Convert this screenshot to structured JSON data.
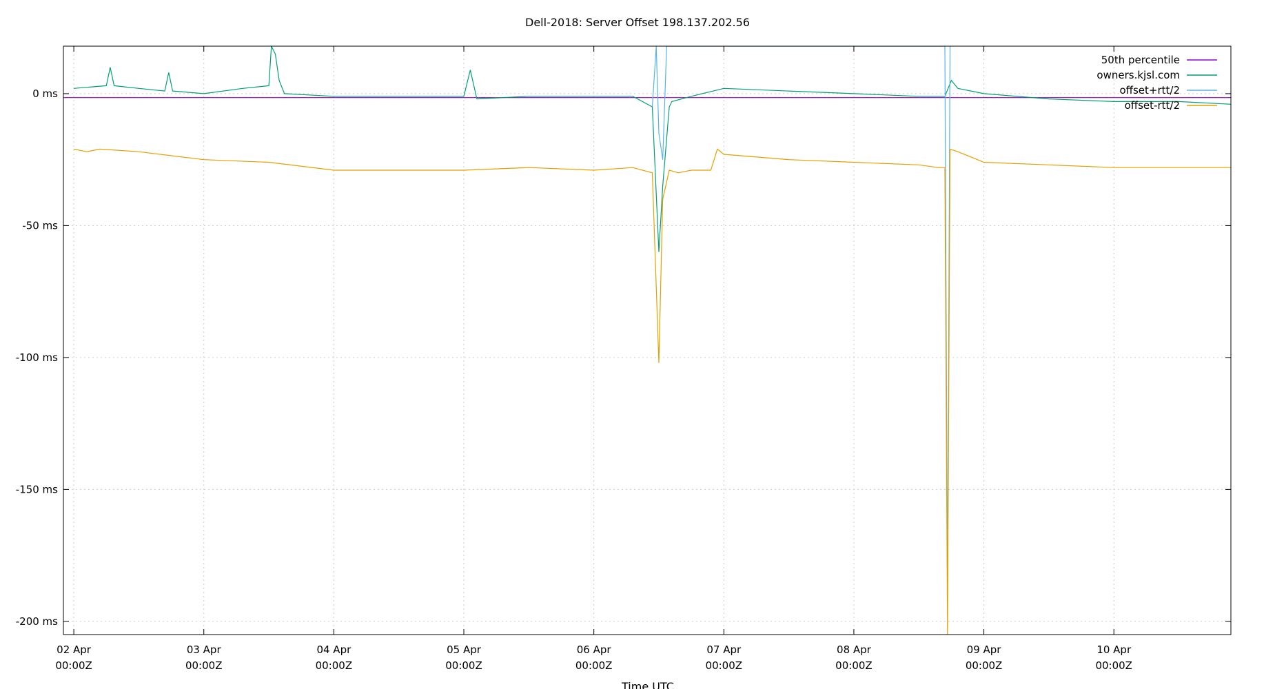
{
  "chart_data": {
    "type": "line",
    "title": "Dell-2018: Server Offset 198.137.202.56",
    "xlabel": "Time UTC",
    "ylabel": "",
    "x_unit": "days",
    "xlim": [
      -0.08,
      8.9
    ],
    "ylim": [
      -205,
      18
    ],
    "grid": true,
    "legend_position": "top-right",
    "x_ticks": [
      {
        "value": 0,
        "line1": "02 Apr",
        "line2": "00:00Z"
      },
      {
        "value": 1,
        "line1": "03 Apr",
        "line2": "00:00Z"
      },
      {
        "value": 2,
        "line1": "04 Apr",
        "line2": "00:00Z"
      },
      {
        "value": 3,
        "line1": "05 Apr",
        "line2": "00:00Z"
      },
      {
        "value": 4,
        "line1": "06 Apr",
        "line2": "00:00Z"
      },
      {
        "value": 5,
        "line1": "07 Apr",
        "line2": "00:00Z"
      },
      {
        "value": 6,
        "line1": "08 Apr",
        "line2": "00:00Z"
      },
      {
        "value": 7,
        "line1": "09 Apr",
        "line2": "00:00Z"
      },
      {
        "value": 8,
        "line1": "10 Apr",
        "line2": "00:00Z"
      }
    ],
    "y_ticks": [
      {
        "value": 0,
        "label": "0 ms"
      },
      {
        "value": -50,
        "label": "-50 ms"
      },
      {
        "value": -100,
        "label": "-100 ms"
      },
      {
        "value": -150,
        "label": "-150 ms"
      },
      {
        "value": -200,
        "label": "-200 ms"
      }
    ],
    "series": [
      {
        "name": "50th percentile",
        "color": "#9400d3",
        "x": [
          -0.08,
          8.9
        ],
        "values": [
          -1.5,
          -1.5
        ]
      },
      {
        "name": "owners.kjsl.com",
        "color": "#009e73",
        "x": [
          0,
          0.25,
          0.28,
          0.31,
          0.5,
          0.7,
          0.73,
          0.76,
          1.0,
          1.3,
          1.5,
          1.52,
          1.55,
          1.58,
          1.62,
          2.0,
          2.5,
          3.0,
          3.05,
          3.1,
          3.5,
          4.0,
          4.3,
          4.45,
          4.5,
          4.53,
          4.58,
          4.6,
          4.75,
          5.0,
          5.5,
          6.0,
          6.5,
          6.7,
          6.75,
          6.8,
          7.0,
          7.5,
          8.0,
          8.5,
          8.9
        ],
        "values": [
          2,
          3,
          10,
          3,
          2,
          1,
          8,
          1,
          0,
          2,
          3,
          18,
          15,
          5,
          0,
          -1,
          -1,
          -1,
          9,
          -2,
          -1,
          -1,
          -1,
          -5,
          -60,
          -35,
          -5,
          -3,
          -1,
          2,
          1,
          0,
          -1,
          -1,
          5,
          2,
          0,
          -2,
          -3,
          -3,
          -4
        ]
      },
      {
        "name": "offset+rtt/2",
        "color": "#56b4e9",
        "x": [
          4.45,
          4.48,
          4.5,
          4.53,
          4.56,
          6.7,
          6.72,
          6.74
        ],
        "values": [
          -5,
          18,
          -15,
          -25,
          18,
          18,
          -190,
          18
        ]
      },
      {
        "name": "offset-rtt/2",
        "color": "#e69f00",
        "x": [
          0,
          0.1,
          0.2,
          0.5,
          1.0,
          1.5,
          2.0,
          2.5,
          3.0,
          3.5,
          4.0,
          4.3,
          4.45,
          4.5,
          4.53,
          4.58,
          4.65,
          4.75,
          4.9,
          4.95,
          5.0,
          5.5,
          6.0,
          6.5,
          6.65,
          6.7,
          6.72,
          6.74,
          6.8,
          7.0,
          7.5,
          8.0,
          8.5,
          8.9
        ],
        "values": [
          -21,
          -22,
          -21,
          -22,
          -25,
          -26,
          -29,
          -29,
          -29,
          -28,
          -29,
          -28,
          -30,
          -102,
          -40,
          -29,
          -30,
          -29,
          -29,
          -21,
          -23,
          -25,
          -26,
          -27,
          -28,
          -28,
          -205,
          -21,
          -22,
          -26,
          -27,
          -28,
          -28,
          -28
        ]
      }
    ]
  }
}
